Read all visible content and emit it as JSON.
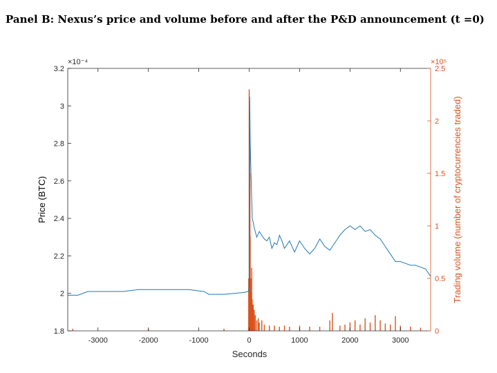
{
  "panel_title": "Panel B: Nexus’s price and volume before and after the P&D announcement (t =0)",
  "colors": {
    "price": "#1f77b4",
    "volume": "#d9531e",
    "axis": "#262626"
  },
  "chart_data": {
    "type": "line",
    "title": "Panel B: Nexus’s price and volume before and after the P&D announcement (t =0)",
    "xlabel": "Seconds",
    "ylabel_left": "Price (BTC)",
    "ylabel_right": "Trading volume (number of cryptocurrencies traded)",
    "y_left_exponent": "×10⁻⁴",
    "y_right_exponent": "×10⁵",
    "xlim": [
      -3600,
      3600
    ],
    "ylim_left": [
      1.8,
      3.2
    ],
    "ylim_right": [
      0,
      2.5
    ],
    "x_ticks": [
      -3000,
      -2000,
      -1000,
      0,
      1000,
      2000,
      3000
    ],
    "x_tick_labels": [
      "-3000",
      "-2000",
      "-1000",
      "0",
      "1000",
      "2000",
      "3000"
    ],
    "y_left_ticks": [
      1.8,
      2.0,
      2.2,
      2.4,
      2.6,
      2.8,
      3.0,
      3.2
    ],
    "y_left_tick_labels": [
      "1.8",
      "2",
      "2.2",
      "2.4",
      "2.6",
      "2.8",
      "3",
      "3.2"
    ],
    "y_right_ticks": [
      0,
      0.5,
      1.0,
      1.5,
      2.0,
      2.5
    ],
    "y_right_tick_labels": [
      "0",
      "0.5",
      "1",
      "1.5",
      "2",
      "2.5"
    ],
    "grid": false,
    "series": [
      {
        "axis": "left",
        "style": "line",
        "x": [
          -3600,
          -3400,
          -3200,
          -3000,
          -2800,
          -2500,
          -2200,
          -2000,
          -1800,
          -1500,
          -1200,
          -900,
          -800,
          -700,
          -500,
          -300,
          -100,
          -20,
          0,
          10,
          20,
          40,
          60,
          80,
          100,
          150,
          200,
          250,
          300,
          350,
          400,
          450,
          500,
          550,
          600,
          650,
          700,
          750,
          800,
          850,
          900,
          1000,
          1100,
          1200,
          1300,
          1400,
          1500,
          1600,
          1700,
          1800,
          1900,
          2000,
          2100,
          2200,
          2300,
          2400,
          2500,
          2600,
          2700,
          2800,
          2900,
          3000,
          3100,
          3200,
          3300,
          3400,
          3500,
          3600
        ],
        "values": [
          1.99,
          1.99,
          2.01,
          2.01,
          2.01,
          2.01,
          2.02,
          2.02,
          2.02,
          2.02,
          2.02,
          2.01,
          1.995,
          1.995,
          1.995,
          2.0,
          2.005,
          2.01,
          2.03,
          3.05,
          2.8,
          2.6,
          2.4,
          2.38,
          2.35,
          2.3,
          2.33,
          2.31,
          2.29,
          2.28,
          2.3,
          2.24,
          2.27,
          2.26,
          2.31,
          2.28,
          2.24,
          2.26,
          2.28,
          2.25,
          2.22,
          2.28,
          2.24,
          2.21,
          2.24,
          2.29,
          2.25,
          2.23,
          2.27,
          2.31,
          2.34,
          2.36,
          2.34,
          2.36,
          2.33,
          2.34,
          2.31,
          2.29,
          2.25,
          2.21,
          2.17,
          2.17,
          2.16,
          2.15,
          2.15,
          2.14,
          2.13,
          2.09
        ]
      },
      {
        "axis": "right",
        "style": "bar",
        "x": [
          -3500,
          -2000,
          -500,
          -10,
          0,
          5,
          10,
          15,
          20,
          30,
          40,
          50,
          60,
          70,
          80,
          100,
          120,
          150,
          180,
          200,
          250,
          300,
          400,
          500,
          600,
          700,
          800,
          1000,
          1200,
          1400,
          1600,
          1650,
          1800,
          1900,
          2000,
          2100,
          2200,
          2300,
          2400,
          2500,
          2600,
          2700,
          2800,
          2900,
          3000,
          3200,
          3400
        ],
        "values": [
          0.02,
          0.02,
          0.02,
          0.5,
          2.3,
          2.2,
          2.0,
          1.5,
          0.9,
          0.5,
          0.35,
          0.6,
          0.3,
          0.25,
          0.25,
          0.2,
          0.15,
          0.1,
          0.12,
          0.08,
          0.1,
          0.06,
          0.05,
          0.05,
          0.04,
          0.05,
          0.04,
          0.05,
          0.04,
          0.04,
          0.1,
          0.17,
          0.05,
          0.06,
          0.08,
          0.1,
          0.06,
          0.12,
          0.08,
          0.15,
          0.1,
          0.07,
          0.06,
          0.14,
          0.05,
          0.04,
          0.03
        ]
      }
    ]
  }
}
